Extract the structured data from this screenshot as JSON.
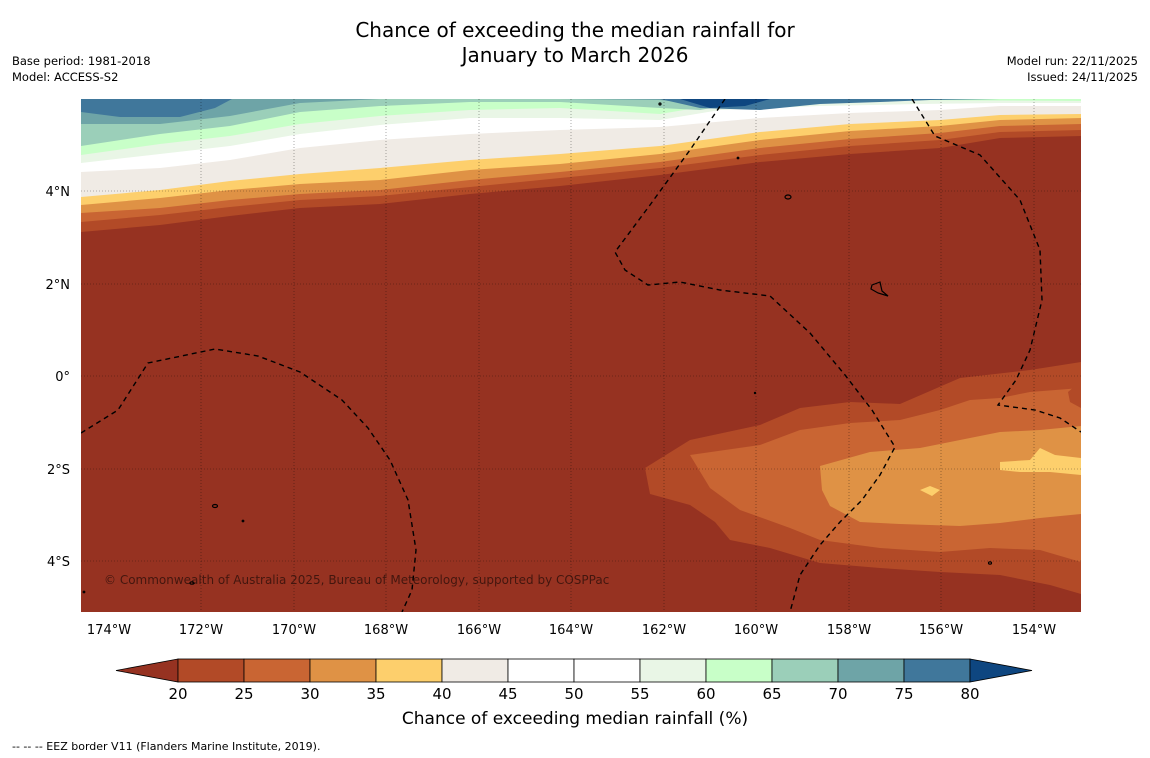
{
  "title": {
    "line1": "Chance of exceeding the median rainfall for",
    "line2": "January to March 2026"
  },
  "meta_left": {
    "base_period": "Base period: 1981-2018",
    "model": "Model: ACCESS-S2"
  },
  "meta_right": {
    "model_run": "Model run: 22/11/2025",
    "issued": "Issued: 24/11/2025"
  },
  "copyright": "© Commonwealth of Australia 2025, Bureau of Meteorology, supported by COSPPac",
  "lon_labels": [
    "174°W",
    "172°W",
    "170°W",
    "168°W",
    "166°W",
    "164°W",
    "162°W",
    "160°W",
    "158°W",
    "156°W",
    "154°W"
  ],
  "lat_labels": [
    "4°N",
    "2°N",
    "0°",
    "2°S",
    "4°S"
  ],
  "colorbar": {
    "ticks": [
      "20",
      "25",
      "30",
      "35",
      "40",
      "45",
      "50",
      "55",
      "60",
      "65",
      "70",
      "75",
      "80"
    ],
    "colors": [
      "#963221",
      "#b24a27",
      "#c96533",
      "#df9245",
      "#fdcf6c",
      "#f0ebe5",
      "#ffffff",
      "#ffffff",
      "#e9f6e6",
      "#c8ffc8",
      "#9bcfb9",
      "#6ea4a7",
      "#40779b",
      "#0e4680"
    ],
    "label": "Chance of exceeding median rainfall (%)"
  },
  "footnote": "--  --  -- EEZ border V11 (Flanders Marine Institute, 2019)."
}
